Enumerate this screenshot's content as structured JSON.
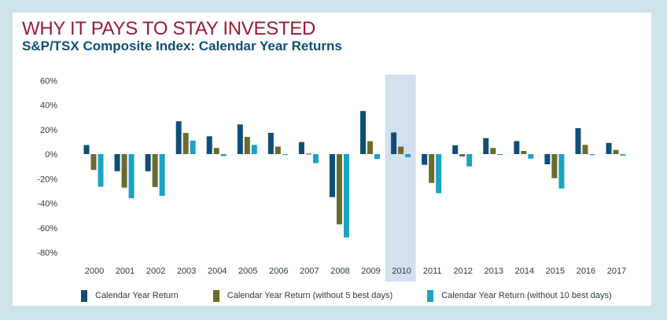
{
  "header": {
    "headline": "WHY IT PAYS TO STAY INVESTED",
    "subtitle": "S&P/TSX Composite Index: Calendar Year Returns"
  },
  "colors": {
    "background": "#cfe3ea",
    "headline": "#9b1b35",
    "subtitle": "#0f4e75",
    "highlight": "#d3e0ee"
  },
  "chart_data": {
    "type": "bar",
    "categories": [
      "2000",
      "2001",
      "2002",
      "2003",
      "2004",
      "2005",
      "2006",
      "2007",
      "2008",
      "2009",
      "2010",
      "2011",
      "2012",
      "2013",
      "2014",
      "2015",
      "2016",
      "2017"
    ],
    "ylim": [
      -80,
      60
    ],
    "yticks": [
      60,
      40,
      20,
      0,
      -20,
      -40,
      -60,
      -80
    ],
    "ytick_labels": [
      "60%",
      "40%",
      "20%",
      "0%",
      "-20%",
      "-40%",
      "-60%",
      "-80%"
    ],
    "highlighted_category": "2010",
    "grid": false,
    "legend_position": "bottom",
    "series": [
      {
        "name": "Calendar Year Return",
        "color": "#0f4e75",
        "values": [
          7.4,
          -13.9,
          -14.0,
          26.7,
          14.5,
          24.1,
          17.3,
          9.8,
          -35.0,
          35.1,
          17.6,
          -8.7,
          7.2,
          13.0,
          10.6,
          -8.3,
          21.1,
          9.1
        ]
      },
      {
        "name": "Calendar Year Return (without 5 best days)",
        "color": "#6b6b30",
        "values": [
          -12.9,
          -27.3,
          -26.8,
          17.2,
          5.0,
          14.0,
          6.1,
          0.5,
          -57.2,
          10.5,
          6.1,
          -23.4,
          -2.0,
          5.0,
          2.6,
          -19.6,
          7.5,
          3.4
        ]
      },
      {
        "name": "Calendar Year Return (without 10 best days)",
        "color": "#1aa3c3",
        "values": [
          -26.5,
          -35.9,
          -34.0,
          11.0,
          -1.6,
          7.5,
          -0.4,
          -7.4,
          -67.8,
          -4.0,
          -2.5,
          -31.8,
          -10.0,
          -0.2,
          -3.7,
          -28.0,
          -0.3,
          -1.2
        ]
      }
    ]
  }
}
